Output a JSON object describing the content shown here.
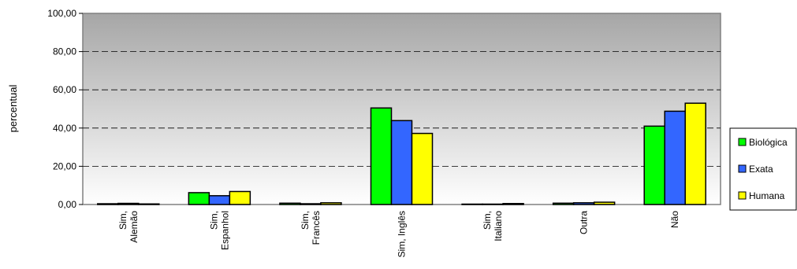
{
  "chart_data": {
    "type": "bar",
    "ylabel": "percentual",
    "ylim": [
      0,
      100
    ],
    "yticks": [
      "0,00",
      "20,00",
      "40,00",
      "60,00",
      "80,00",
      "100,00"
    ],
    "grid": "horizontal-dashed",
    "legend_position": "right",
    "categories": [
      [
        "Sim,",
        "Alemão"
      ],
      [
        "Sim,",
        "Espanhol"
      ],
      [
        "Sim,",
        "Francês"
      ],
      [
        "Sim, Inglês"
      ],
      [
        "Sim,",
        "Italiano"
      ],
      [
        "Outra"
      ],
      [
        "Não"
      ]
    ],
    "series": [
      {
        "name": "Biológica",
        "color": "#00ff00",
        "values": [
          0.4,
          6.2,
          0.7,
          50.5,
          0.2,
          0.7,
          41.0
        ]
      },
      {
        "name": "Exata",
        "color": "#3366ff",
        "values": [
          0.6,
          4.6,
          0.4,
          43.9,
          0.2,
          0.9,
          48.8
        ]
      },
      {
        "name": "Humana",
        "color": "#ffff00",
        "values": [
          0.3,
          6.8,
          0.9,
          37.2,
          0.5,
          1.2,
          53.0
        ]
      }
    ]
  }
}
